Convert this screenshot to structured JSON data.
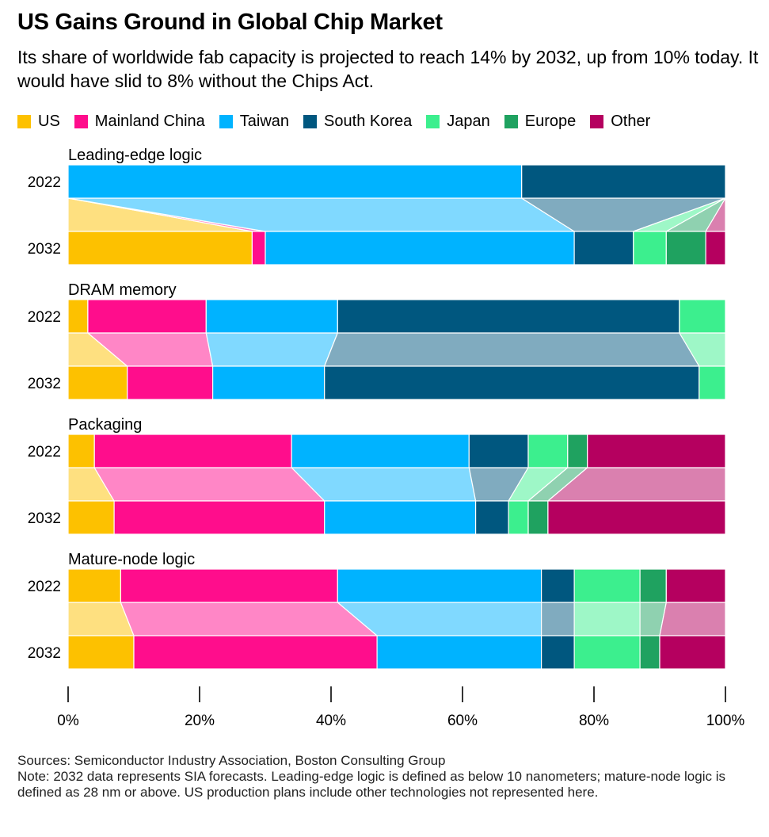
{
  "header": {
    "title": "US Gains Ground in Global Chip Market",
    "subtitle": "Its share of worldwide fab capacity is projected to reach 14% by 2032, up from 10% today. It would have slid to 8% without the Chips Act."
  },
  "legend": [
    {
      "label": "US",
      "color": "#fdc100"
    },
    {
      "label": "Mainland China",
      "color": "#ff0d8c"
    },
    {
      "label": "Taiwan",
      "color": "#00b3ff"
    },
    {
      "label": "South Korea",
      "color": "#00577f"
    },
    {
      "label": "Japan",
      "color": "#3cef8e"
    },
    {
      "label": "Europe",
      "color": "#1fa260"
    },
    {
      "label": "Other",
      "color": "#b5005f"
    }
  ],
  "chart_data": {
    "type": "bar",
    "orientation": "horizontal",
    "stacked": "100%",
    "series_names": [
      "US",
      "Mainland China",
      "Taiwan",
      "South Korea",
      "Japan",
      "Europe",
      "Other"
    ],
    "colors": [
      "#fdc100",
      "#ff0d8c",
      "#00b3ff",
      "#00577f",
      "#3cef8e",
      "#1fa260",
      "#b5005f"
    ],
    "xlim": [
      0,
      100
    ],
    "x_ticks": [
      "0%",
      "20%",
      "40%",
      "60%",
      "80%",
      "100%"
    ],
    "groups": [
      {
        "name": "Leading-edge logic",
        "rows": [
          {
            "year": "2022",
            "values": [
              0,
              0,
              69,
              31,
              0,
              0,
              0
            ]
          },
          {
            "year": "2032",
            "values": [
              28,
              2,
              47,
              9,
              5,
              6,
              3
            ]
          }
        ]
      },
      {
        "name": "DRAM memory",
        "rows": [
          {
            "year": "2022",
            "values": [
              3,
              18,
              20,
              52,
              7,
              0,
              0
            ]
          },
          {
            "year": "2032",
            "values": [
              9,
              13,
              17,
              57,
              4,
              0,
              0
            ]
          }
        ]
      },
      {
        "name": "Packaging",
        "rows": [
          {
            "year": "2022",
            "values": [
              4,
              30,
              27,
              9,
              6,
              3,
              21
            ]
          },
          {
            "year": "2032",
            "values": [
              7,
              32,
              23,
              5,
              3,
              3,
              27
            ]
          }
        ]
      },
      {
        "name": "Mature-node logic",
        "rows": [
          {
            "year": "2022",
            "values": [
              8,
              33,
              31,
              5,
              10,
              4,
              9
            ]
          },
          {
            "year": "2032",
            "values": [
              10,
              37,
              25,
              5,
              10,
              3,
              10
            ]
          }
        ]
      }
    ]
  },
  "footer": {
    "sources": "Sources: Semiconductor Industry Association, Boston Consulting Group",
    "note": "Note: 2032 data represents SIA forecasts. Leading-edge logic is defined as below 10 nanometers; mature-node logic is defined as 28 nm or above. US production plans include other technologies not represented here."
  }
}
